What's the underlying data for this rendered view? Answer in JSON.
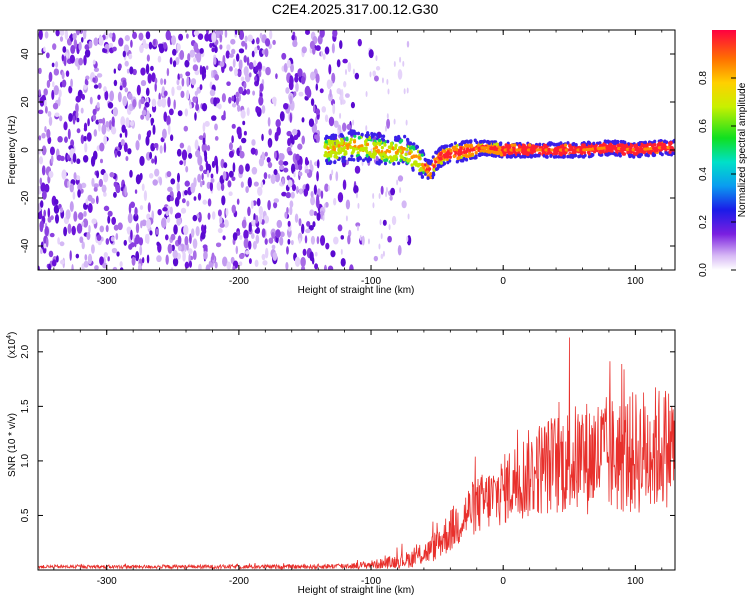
{
  "title": "C2E4.2025.317.00.12.G30",
  "chart_data": [
    {
      "type": "heatmap",
      "xlabel": "Height of straight line (km)",
      "ylabel": "Frequency (Hz)",
      "xlim": [
        -352,
        130
      ],
      "ylim": [
        -50,
        50
      ],
      "xticks": [
        -300,
        -200,
        -100,
        0,
        100
      ],
      "yticks": [
        -40,
        -20,
        0,
        20,
        40
      ],
      "xtick_labels": [
        "-300",
        "-200",
        "-100",
        "0",
        "100"
      ],
      "ytick_labels": [
        "-40",
        "-20",
        "0",
        "20",
        "40"
      ],
      "signal_trace": {
        "x": [
          -130,
          -115,
          -100,
          -85,
          -75,
          -65,
          -55,
          -50,
          -45,
          -35,
          -25,
          -15,
          0,
          20,
          40,
          60,
          80,
          100,
          120,
          130
        ],
        "y": [
          0,
          2,
          1,
          -1,
          0,
          -4,
          -9,
          -4,
          -2,
          -1,
          0,
          1,
          0,
          0,
          0,
          0,
          1,
          0,
          1,
          1
        ]
      },
      "colorbar": {
        "label": "Normalized spectral amplitude",
        "range": [
          0,
          1
        ],
        "ticks": [
          0.0,
          0.2,
          0.4,
          0.6,
          0.8
        ],
        "tick_labels": [
          "0.0",
          "0.2",
          "0.4",
          "0.6",
          "0.8"
        ]
      }
    },
    {
      "type": "line",
      "xlabel": "Height of straight line (km)",
      "ylabel": "SNR (10 * v/v)",
      "scale_label": "(x10",
      "scale_exp": "4",
      "scale_close": ")",
      "xlim": [
        -352,
        130
      ],
      "ylim": [
        0,
        2.2
      ],
      "xticks": [
        -300,
        -200,
        -100,
        0,
        100
      ],
      "yticks": [
        0.5,
        1.0,
        1.5,
        2.0
      ],
      "xtick_labels": [
        "-300",
        "-200",
        "-100",
        "0",
        "100"
      ],
      "ytick_labels": [
        "0.5",
        "1.0",
        "1.5",
        "2.0"
      ],
      "series": [
        {
          "name": "SNR",
          "color": "#e8302c",
          "envelope_x": [
            -352,
            -150,
            -110,
            -90,
            -70,
            -55,
            -45,
            -35,
            -25,
            -15,
            -5,
            5,
            15,
            30,
            50,
            70,
            90,
            110,
            130
          ],
          "envelope_mean": [
            0.03,
            0.03,
            0.04,
            0.06,
            0.1,
            0.18,
            0.3,
            0.42,
            0.55,
            0.62,
            0.68,
            0.78,
            0.85,
            0.95,
            1.0,
            1.05,
            1.05,
            1.1,
            1.15
          ],
          "envelope_spread": [
            0.015,
            0.02,
            0.03,
            0.05,
            0.08,
            0.12,
            0.18,
            0.22,
            0.25,
            0.28,
            0.3,
            0.35,
            0.4,
            0.45,
            0.5,
            0.55,
            0.55,
            0.6,
            0.55
          ]
        }
      ]
    }
  ]
}
